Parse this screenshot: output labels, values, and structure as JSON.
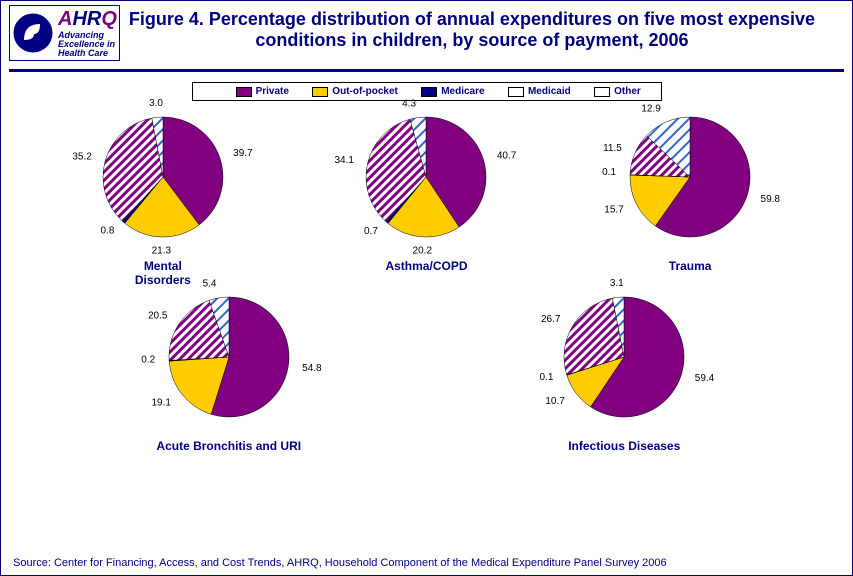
{
  "logo": {
    "ahrq": "AHRQ",
    "tagline1": "Advancing",
    "tagline2": "Excellence in",
    "tagline3": "Health Care"
  },
  "title_prefix": "Figure 4. ",
  "title_main": "Percentage distribution of annual expenditures on five most expensive conditions in children, by source of payment, 2006",
  "legend_items": [
    {
      "label": "Private",
      "swatch": "private"
    },
    {
      "label": "Out-of-pocket",
      "swatch": "oop"
    },
    {
      "label": "Medicare",
      "swatch": "medicare"
    },
    {
      "label": "Medicaid",
      "swatch": "medicaid"
    },
    {
      "label": "Other",
      "swatch": "other"
    }
  ],
  "colors": {
    "private": "#800080",
    "oop": "#ffcc00",
    "medicare": "#000080",
    "medicaid": "#800080",
    "other": "#3366cc",
    "stroke": "#000000",
    "background": "#ffffff",
    "title": "#000080"
  },
  "hatch": {
    "medicaid": {
      "bg": "#ffffff",
      "fg": "#800080",
      "angle": 45
    },
    "other": {
      "bg": "#ffffff",
      "fg": "#3366cc",
      "angle": 45,
      "style": "wide"
    }
  },
  "chart_type": "pie",
  "pie_radius": 60,
  "label_fontsize": 10,
  "start_angle_deg": -90,
  "charts": [
    {
      "name": "Mental Disorders",
      "slices": [
        {
          "k": "private",
          "v": 39.7
        },
        {
          "k": "oop",
          "v": 21.3
        },
        {
          "k": "medicare",
          "v": 0.8
        },
        {
          "k": "medicaid",
          "v": 35.2
        },
        {
          "k": "other",
          "v": 3.0
        }
      ]
    },
    {
      "name": "Asthma/COPD",
      "slices": [
        {
          "k": "private",
          "v": 40.7
        },
        {
          "k": "oop",
          "v": 20.2
        },
        {
          "k": "medicare",
          "v": 0.7
        },
        {
          "k": "medicaid",
          "v": 34.1
        },
        {
          "k": "other",
          "v": 4.3
        }
      ]
    },
    {
      "name": "Trauma",
      "slices": [
        {
          "k": "private",
          "v": 59.8
        },
        {
          "k": "oop",
          "v": 15.7
        },
        {
          "k": "medicare",
          "v": 0.1
        },
        {
          "k": "medicaid",
          "v": 11.5
        },
        {
          "k": "other",
          "v": 12.9
        }
      ]
    },
    {
      "name": "Acute Bronchitis and URI",
      "slices": [
        {
          "k": "private",
          "v": 54.8
        },
        {
          "k": "oop",
          "v": 19.1
        },
        {
          "k": "medicare",
          "v": 0.2
        },
        {
          "k": "medicaid",
          "v": 20.5
        },
        {
          "k": "other",
          "v": 5.4
        }
      ]
    },
    {
      "name": "Infectious Diseases",
      "slices": [
        {
          "k": "private",
          "v": 59.4
        },
        {
          "k": "oop",
          "v": 10.7
        },
        {
          "k": "medicare",
          "v": 0.1
        },
        {
          "k": "medicaid",
          "v": 26.7
        },
        {
          "k": "other",
          "v": 3.1
        }
      ]
    }
  ],
  "source": "Source: Center for Financing, Access, and Cost Trends, AHRQ, Household Component of the Medical Expenditure Panel Survey 2006"
}
